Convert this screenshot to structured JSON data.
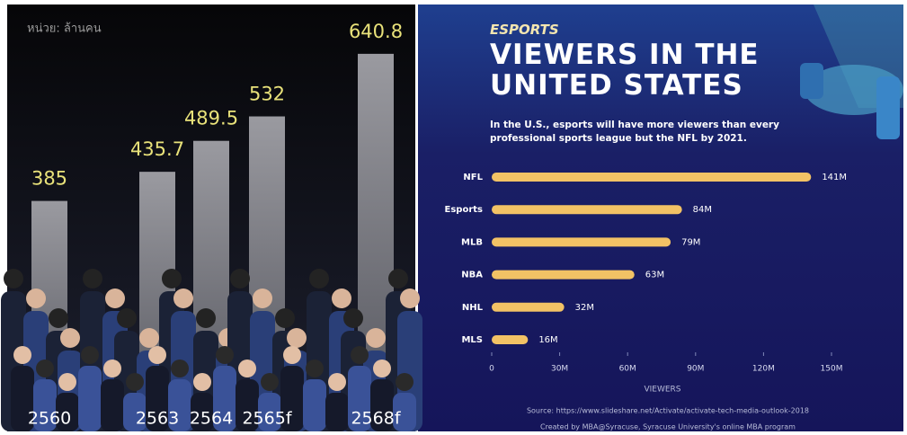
{
  "chart_data": [
    {
      "type": "bar",
      "subtitle": "หน่วย: ล้านคน",
      "categories": [
        "2560",
        "2563",
        "2564",
        "2565f",
        "2568f"
      ],
      "values": [
        385,
        435.7,
        489.5,
        532,
        640.8
      ],
      "color": "#8c8c92",
      "label_color": "#e9e27a"
    },
    {
      "type": "hbar",
      "kicker": "ESPORTS",
      "title": "VIEWERS IN THE UNITED STATES",
      "subtitle": "In the U.S., esports will have more viewers than every professional sports league but the NFL by 2021.",
      "categories": [
        "NFL",
        "Esports",
        "MLB",
        "NBA",
        "NHL",
        "MLS"
      ],
      "values": [
        141,
        84,
        79,
        63,
        32,
        16
      ],
      "value_labels": [
        "141M",
        "84M",
        "79M",
        "63M",
        "32M",
        "16M"
      ],
      "color": "#f2c265",
      "xlim": [
        0,
        150
      ],
      "xticks": [
        0,
        {
          "value": 30,
          "label": "30M"
        },
        {
          "value": 60,
          "label": "60M"
        },
        {
          "value": 90,
          "label": "90M"
        },
        {
          "value": 120,
          "label": "120M"
        },
        {
          "value": 150,
          "label": "150M"
        }
      ],
      "xlabel": "VIEWERS",
      "source": "Source: https://www.slideshare.net/Activate/activate-tech-media-outlook-2018",
      "credit": "Created by MBA@Syracuse, Syracuse University's online MBA program"
    }
  ]
}
